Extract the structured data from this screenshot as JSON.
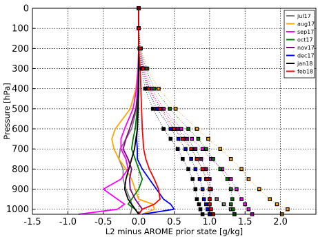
{
  "chart_data": {
    "type": "line",
    "title": "",
    "xlabel": "L2 minus AROME prior state [g/kg]",
    "ylabel": "Pressure [hPa]",
    "xlim": [
      -1.5,
      2.5
    ],
    "ylim": [
      1025,
      0
    ],
    "y_inverted": true,
    "x_ticks": [
      -1.5,
      -1.0,
      -0.5,
      0.0,
      0.5,
      1.0,
      1.5,
      2.0
    ],
    "x_tick_labels": [
      "-1.5",
      "-1.0",
      "-0.5",
      "0.0",
      "0.5",
      "1.0",
      "1.5",
      "2.0"
    ],
    "y_ticks": [
      0,
      100,
      200,
      300,
      400,
      500,
      600,
      700,
      800,
      900,
      1000
    ],
    "y_tick_labels": [
      "0",
      "100",
      "200",
      "300",
      "400",
      "500",
      "600",
      "700",
      "800",
      "900",
      "1000"
    ],
    "grid": true,
    "grid_style": "dotted",
    "legend_position": "top-right",
    "pressure": [
      0,
      100,
      200,
      300,
      400,
      500,
      600,
      650,
      700,
      750,
      800,
      850,
      900,
      950,
      975,
      1000,
      1025
    ],
    "series": [
      {
        "name": "jul17",
        "color": "#808080",
        "x": [
          0.0,
          0.0,
          0.0,
          0.0,
          -0.01,
          -0.03,
          -0.1,
          -0.18,
          -0.26,
          -0.28,
          -0.22,
          -0.22,
          -0.18,
          -0.12,
          -0.1,
          -0.1,
          -0.12
        ]
      },
      {
        "name": "aug17",
        "color": "#ffa500",
        "x": [
          0.0,
          0.0,
          0.0,
          -0.01,
          -0.04,
          -0.12,
          -0.33,
          -0.38,
          -0.35,
          -0.28,
          -0.18,
          -0.1,
          -0.05,
          0.0,
          0.2,
          0.22,
          0.05
        ]
      },
      {
        "name": "sep17",
        "color": "#ff00ff",
        "x": [
          0.0,
          0.0,
          0.0,
          -0.01,
          -0.03,
          -0.08,
          -0.2,
          -0.25,
          -0.25,
          -0.18,
          -0.15,
          -0.25,
          -0.5,
          -0.3,
          -0.2,
          -0.3,
          -0.85
        ]
      },
      {
        "name": "oct17",
        "color": "#008000",
        "x": [
          0.0,
          0.0,
          0.0,
          0.0,
          -0.01,
          -0.02,
          -0.05,
          -0.08,
          -0.1,
          -0.05,
          0.0,
          0.05,
          0.0,
          -0.1,
          -0.15,
          -0.05,
          0.0
        ]
      },
      {
        "name": "nov17",
        "color": "#800080",
        "x": [
          0.0,
          0.0,
          0.0,
          0.0,
          -0.01,
          -0.04,
          -0.13,
          -0.18,
          -0.22,
          -0.15,
          -0.1,
          -0.13,
          -0.12,
          -0.05,
          0.0,
          0.05,
          0.0
        ]
      },
      {
        "name": "dec17",
        "color": "#0000ff",
        "x": [
          0.0,
          0.0,
          0.0,
          0.0,
          0.0,
          -0.01,
          -0.02,
          -0.03,
          -0.02,
          -0.02,
          0.05,
          0.15,
          0.25,
          0.35,
          0.45,
          0.5,
          0.05
        ]
      },
      {
        "name": "jan18",
        "color": "#000000",
        "x": [
          0.0,
          0.0,
          0.0,
          0.0,
          0.0,
          -0.01,
          -0.02,
          -0.04,
          -0.06,
          -0.1,
          -0.14,
          -0.18,
          -0.2,
          -0.15,
          -0.1,
          -0.05,
          0.0
        ]
      },
      {
        "name": "feb18",
        "color": "#ff0000",
        "x": [
          0.0,
          0.0,
          0.0,
          0.02,
          0.03,
          0.04,
          0.05,
          0.06,
          0.07,
          0.1,
          0.15,
          0.22,
          0.28,
          0.3,
          0.22,
          0.05,
          0.0
        ]
      }
    ],
    "marker_series": [
      {
        "color": "#808080",
        "x": [
          0.0,
          0.0,
          0.02,
          0.06,
          0.12,
          0.24,
          0.5,
          0.65,
          0.75,
          0.82,
          0.9,
          0.95,
          1.0,
          1.1,
          1.2,
          1.3,
          1.35
        ]
      },
      {
        "color": "#ffa500",
        "x": [
          0.0,
          0.0,
          0.03,
          0.12,
          0.28,
          0.52,
          0.82,
          0.98,
          1.15,
          1.3,
          1.45,
          1.55,
          1.7,
          1.85,
          1.95,
          2.1,
          2.02
        ]
      },
      {
        "color": "#ff00ff",
        "x": [
          0.0,
          0.0,
          0.02,
          0.08,
          0.18,
          0.35,
          0.6,
          0.75,
          0.9,
          1.02,
          1.18,
          1.3,
          1.38,
          1.45,
          1.5,
          1.55,
          1.6
        ]
      },
      {
        "color": "#008000",
        "x": [
          0.0,
          0.0,
          0.02,
          0.1,
          0.22,
          0.44,
          0.7,
          0.84,
          0.95,
          1.05,
          1.15,
          1.25,
          1.3,
          1.32,
          1.3,
          1.33,
          1.35
        ]
      },
      {
        "color": "#800080",
        "x": [
          0.0,
          0.0,
          0.02,
          0.07,
          0.15,
          0.32,
          0.55,
          0.68,
          0.8,
          0.88,
          0.95,
          1.0,
          1.02,
          1.0,
          1.0,
          1.0,
          1.0
        ]
      },
      {
        "color": "#0000ff",
        "x": [
          0.0,
          0.0,
          0.02,
          0.05,
          0.12,
          0.26,
          0.45,
          0.56,
          0.66,
          0.74,
          0.8,
          0.86,
          0.9,
          0.92,
          0.95,
          0.97,
          1.0
        ]
      },
      {
        "color": "#000000",
        "x": [
          0.0,
          0.0,
          0.01,
          0.04,
          0.09,
          0.2,
          0.35,
          0.45,
          0.55,
          0.62,
          0.7,
          0.76,
          0.8,
          0.82,
          0.85,
          0.87,
          0.9
        ]
      },
      {
        "color": "#ff0000",
        "x": [
          0.0,
          0.0,
          0.02,
          0.06,
          0.14,
          0.3,
          0.5,
          0.62,
          0.74,
          0.82,
          0.9,
          0.96,
          1.0,
          1.0,
          1.0,
          1.02,
          1.05
        ]
      }
    ]
  }
}
